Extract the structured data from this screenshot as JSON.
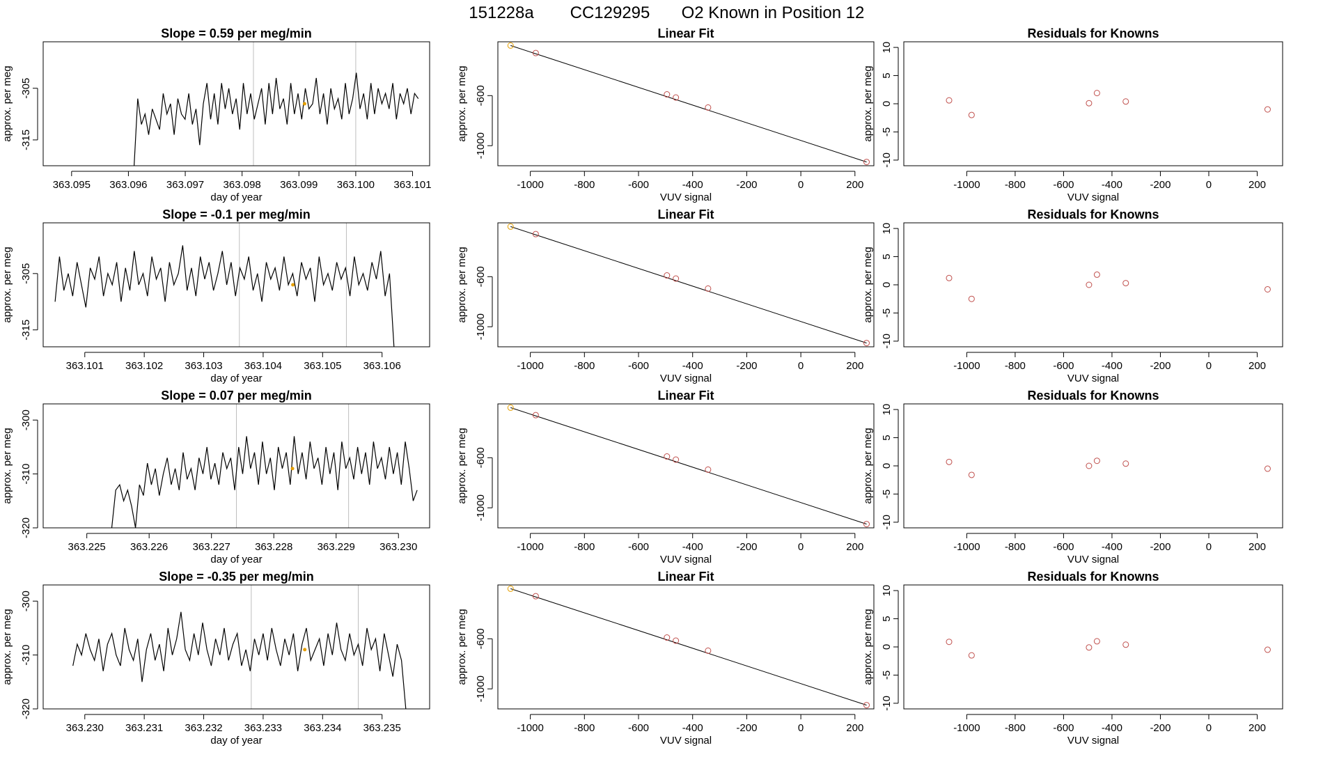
{
  "figure": {
    "title_parts": [
      "151228a",
      "CC129295",
      "O2 Known in Position  12"
    ]
  },
  "chart_data": [
    {
      "type": "line",
      "title": "Slope =  0.59  per meg/min",
      "xlabel": "day of year",
      "ylabel": "approx. per meg",
      "xlim": [
        363.0945,
        363.1013
      ],
      "ylim": [
        -320,
        -296
      ],
      "x_ticks": [
        "363.095",
        "363.096",
        "363.097",
        "363.098",
        "363.099",
        "363.100",
        "363.101"
      ],
      "y_ticks": [
        "-315",
        "-305"
      ],
      "vlines": [
        363.0982,
        363.1
      ],
      "highlight": {
        "x": 363.0991,
        "y": -308
      },
      "series": [
        {
          "start": 363.0961,
          "end": 363.1011,
          "values": [
            -320,
            -307,
            -312,
            -310,
            -314,
            -309,
            -311,
            -313,
            -306,
            -310,
            -308,
            -314,
            -307,
            -310,
            -311,
            -306,
            -312,
            -309,
            -316,
            -308,
            -304,
            -311,
            -306,
            -312,
            -304,
            -309,
            -305,
            -310,
            -307,
            -313,
            -304,
            -310,
            -306,
            -311,
            -308,
            -305,
            -312,
            -304,
            -310,
            -303,
            -309,
            -307,
            -312,
            -304,
            -310,
            -306,
            -311,
            -305,
            -309,
            -308,
            -303,
            -310,
            -306,
            -312,
            -305,
            -309,
            -307,
            -311,
            -304,
            -310,
            -307,
            -302,
            -309,
            -306,
            -311,
            -304,
            -310,
            -305,
            -308,
            -306,
            -309,
            -304,
            -311,
            -306,
            -308,
            -305,
            -310,
            -306,
            -307
          ]
        }
      ]
    },
    {
      "type": "scatter",
      "title": "Linear Fit",
      "xlabel": "VUV signal",
      "ylabel": "approx. per meg",
      "xlim": [
        -1120,
        270
      ],
      "ylim": [
        -1160,
        -170
      ],
      "x_ticks": [
        "-1000",
        "-800",
        "-600",
        "-400",
        "-200",
        "0",
        "200"
      ],
      "x_tick_values": [
        -1000,
        -800,
        -600,
        -400,
        -200,
        0,
        200
      ],
      "y_ticks": [
        "-600",
        "-1000"
      ],
      "y_tick_values": [
        -600,
        -1000
      ],
      "fit": {
        "slope": -0.768,
        "intercept": -1065
      },
      "points": [
        {
          "x": -1073,
          "y": -200,
          "highlight": true
        },
        {
          "x": -980,
          "y": -260
        },
        {
          "x": -495,
          "y": -590
        },
        {
          "x": -462,
          "y": -615
        },
        {
          "x": -343,
          "y": -695
        },
        {
          "x": 243,
          "y": -1130
        }
      ]
    },
    {
      "type": "scatter",
      "title": "Residuals for Knowns",
      "xlabel": "VUV signal",
      "ylabel": "approx. per meg",
      "xlim": [
        -1260,
        305
      ],
      "ylim": [
        -11,
        11
      ],
      "x_ticks": [
        "-1000",
        "-800",
        "-600",
        "-400",
        "-200",
        "0",
        "200"
      ],
      "x_tick_values": [
        -1000,
        -800,
        -600,
        -400,
        -200,
        0,
        200
      ],
      "y_ticks": [
        "-10",
        "-5",
        "0",
        "5",
        "10"
      ],
      "y_tick_values": [
        -10,
        -5,
        0,
        5,
        10
      ],
      "points": [
        {
          "x": -1073,
          "y": 0.6
        },
        {
          "x": -980,
          "y": -2
        },
        {
          "x": -495,
          "y": 0.1
        },
        {
          "x": -462,
          "y": 1.9
        },
        {
          "x": -343,
          "y": 0.4
        },
        {
          "x": 243,
          "y": -1
        }
      ]
    },
    {
      "type": "line",
      "title": "Slope =  -0.1  per meg/min",
      "xlabel": "day of year",
      "ylabel": "approx. per meg",
      "xlim": [
        363.1003,
        363.1068
      ],
      "ylim": [
        -318,
        -296
      ],
      "x_ticks": [
        "363.101",
        "363.102",
        "363.103",
        "363.104",
        "363.105",
        "363.106"
      ],
      "y_ticks": [
        "-315",
        "-305"
      ],
      "vlines": [
        363.1036,
        363.1054
      ],
      "highlight": {
        "x": 363.1045,
        "y": -307
      },
      "series": [
        {
          "start": 363.1005,
          "end": 363.1062,
          "values": [
            -310,
            -302,
            -308,
            -305,
            -309,
            -303,
            -307,
            -311,
            -304,
            -306,
            -302,
            -309,
            -305,
            -307,
            -303,
            -310,
            -304,
            -308,
            -301,
            -307,
            -305,
            -309,
            -302,
            -306,
            -304,
            -310,
            -303,
            -307,
            -305,
            -300,
            -308,
            -304,
            -309,
            -302,
            -306,
            -303,
            -308,
            -305,
            -301,
            -307,
            -303,
            -309,
            -304,
            -306,
            -302,
            -308,
            -305,
            -310,
            -303,
            -306,
            -304,
            -308,
            -302,
            -307,
            -305,
            -309,
            -303,
            -306,
            -304,
            -310,
            -302,
            -307,
            -305,
            -308,
            -303,
            -306,
            -304,
            -309,
            -302,
            -307,
            -305,
            -308,
            -303,
            -306,
            -301,
            -309,
            -305,
            -318
          ]
        }
      ]
    },
    {
      "type": "scatter",
      "title": "Linear Fit",
      "xlabel": "VUV signal",
      "ylabel": "approx. per meg",
      "xlim": [
        -1120,
        270
      ],
      "ylim": [
        -1160,
        -170
      ],
      "x_ticks": [
        "-1000",
        "-800",
        "-600",
        "-400",
        "-200",
        "0",
        "200"
      ],
      "x_tick_values": [
        -1000,
        -800,
        -600,
        -400,
        -200,
        0,
        200
      ],
      "y_ticks": [
        "-600",
        "-1000"
      ],
      "y_tick_values": [
        -600,
        -1000
      ],
      "fit": {
        "slope": -0.768,
        "intercept": -1065
      },
      "points": [
        {
          "x": -1073,
          "y": -200,
          "highlight": true
        },
        {
          "x": -980,
          "y": -260
        },
        {
          "x": -495,
          "y": -590
        },
        {
          "x": -462,
          "y": -615
        },
        {
          "x": -343,
          "y": -695
        },
        {
          "x": 243,
          "y": -1130
        }
      ]
    },
    {
      "type": "scatter",
      "title": "Residuals for Knowns",
      "xlabel": "VUV signal",
      "ylabel": "approx. per meg",
      "xlim": [
        -1260,
        305
      ],
      "ylim": [
        -11,
        11
      ],
      "x_ticks": [
        "-1000",
        "-800",
        "-600",
        "-400",
        "-200",
        "0",
        "200"
      ],
      "x_tick_values": [
        -1000,
        -800,
        -600,
        -400,
        -200,
        0,
        200
      ],
      "y_ticks": [
        "-10",
        "-5",
        "0",
        "5",
        "10"
      ],
      "y_tick_values": [
        -10,
        -5,
        0,
        5,
        10
      ],
      "points": [
        {
          "x": -1073,
          "y": 1.2
        },
        {
          "x": -980,
          "y": -2.5
        },
        {
          "x": -495,
          "y": 0
        },
        {
          "x": -462,
          "y": 1.8
        },
        {
          "x": -343,
          "y": 0.3
        },
        {
          "x": 243,
          "y": -0.8
        }
      ]
    },
    {
      "type": "line",
      "title": "Slope =  0.07  per meg/min",
      "xlabel": "day of year",
      "ylabel": "approx. per meg",
      "xlim": [
        363.2243,
        363.2305
      ],
      "ylim": [
        -320,
        -297
      ],
      "x_ticks": [
        "363.225",
        "363.226",
        "363.227",
        "363.228",
        "363.229",
        "363.230"
      ],
      "y_ticks": [
        "-320",
        "-310",
        "-300"
      ],
      "vlines": [
        363.2274,
        363.2292
      ],
      "highlight": {
        "x": 363.2283,
        "y": -309
      },
      "series": [
        {
          "start": 363.2254,
          "end": 363.2303,
          "values": [
            -320,
            -313,
            -312,
            -315,
            -313,
            -316,
            -320,
            -312,
            -314,
            -308,
            -312,
            -309,
            -314,
            -310,
            -307,
            -312,
            -309,
            -313,
            -306,
            -311,
            -309,
            -313,
            -307,
            -310,
            -305,
            -311,
            -308,
            -312,
            -306,
            -309,
            -307,
            -313,
            -305,
            -310,
            -303,
            -309,
            -306,
            -312,
            -304,
            -310,
            -307,
            -313,
            -305,
            -309,
            -306,
            -312,
            -303,
            -310,
            -306,
            -311,
            -304,
            -309,
            -307,
            -312,
            -305,
            -310,
            -306,
            -313,
            -304,
            -309,
            -307,
            -311,
            -305,
            -310,
            -306,
            -312,
            -304,
            -309,
            -307,
            -311,
            -305,
            -310,
            -306,
            -312,
            -304,
            -309,
            -315,
            -313
          ]
        }
      ]
    },
    {
      "type": "scatter",
      "title": "Linear Fit",
      "xlabel": "VUV signal",
      "ylabel": "approx. per meg",
      "xlim": [
        -1120,
        270
      ],
      "ylim": [
        -1160,
        -170
      ],
      "x_ticks": [
        "-1000",
        "-800",
        "-600",
        "-400",
        "-200",
        "0",
        "200"
      ],
      "x_tick_values": [
        -1000,
        -800,
        -600,
        -400,
        -200,
        0,
        200
      ],
      "y_ticks": [
        "-600",
        "-1000"
      ],
      "y_tick_values": [
        -600,
        -1000
      ],
      "fit": {
        "slope": -0.768,
        "intercept": -1065
      },
      "points": [
        {
          "x": -1073,
          "y": -200,
          "highlight": true
        },
        {
          "x": -980,
          "y": -260
        },
        {
          "x": -495,
          "y": -590
        },
        {
          "x": -462,
          "y": -615
        },
        {
          "x": -343,
          "y": -695
        },
        {
          "x": 243,
          "y": -1130
        }
      ]
    },
    {
      "type": "scatter",
      "title": "Residuals for Knowns",
      "xlabel": "VUV signal",
      "ylabel": "approx. per meg",
      "xlim": [
        -1260,
        305
      ],
      "ylim": [
        -11,
        11
      ],
      "x_ticks": [
        "-1000",
        "-800",
        "-600",
        "-400",
        "-200",
        "0",
        "200"
      ],
      "x_tick_values": [
        -1000,
        -800,
        -600,
        -400,
        -200,
        0,
        200
      ],
      "y_ticks": [
        "-10",
        "-5",
        "0",
        "5",
        "10"
      ],
      "y_tick_values": [
        -10,
        -5,
        0,
        5,
        10
      ],
      "points": [
        {
          "x": -1073,
          "y": 0.7
        },
        {
          "x": -980,
          "y": -1.6
        },
        {
          "x": -495,
          "y": 0
        },
        {
          "x": -462,
          "y": 0.9
        },
        {
          "x": -343,
          "y": 0.4
        },
        {
          "x": 243,
          "y": -0.5
        }
      ]
    },
    {
      "type": "line",
      "title": "Slope =  -0.35  per meg/min",
      "xlabel": "day of year",
      "ylabel": "approx. per meg",
      "xlim": [
        363.2293,
        363.2358
      ],
      "ylim": [
        -320,
        -297
      ],
      "x_ticks": [
        "363.230",
        "363.231",
        "363.232",
        "363.233",
        "363.234",
        "363.235"
      ],
      "y_ticks": [
        "-320",
        "-310",
        "-300"
      ],
      "vlines": [
        363.2328,
        363.2346
      ],
      "highlight": {
        "x": 363.2337,
        "y": -309
      },
      "series": [
        {
          "start": 363.2298,
          "end": 363.2354,
          "values": [
            -312,
            -308,
            -310,
            -306,
            -309,
            -311,
            -307,
            -313,
            -308,
            -306,
            -310,
            -312,
            -305,
            -309,
            -311,
            -307,
            -315,
            -309,
            -306,
            -311,
            -308,
            -313,
            -305,
            -310,
            -307,
            -302,
            -309,
            -311,
            -306,
            -310,
            -304,
            -309,
            -312,
            -307,
            -310,
            -305,
            -311,
            -308,
            -306,
            -312,
            -309,
            -313,
            -307,
            -310,
            -306,
            -311,
            -305,
            -309,
            -312,
            -307,
            -310,
            -306,
            -313,
            -308,
            -305,
            -311,
            -309,
            -307,
            -312,
            -306,
            -310,
            -304,
            -309,
            -311,
            -306,
            -310,
            -308,
            -312,
            -305,
            -309,
            -307,
            -313,
            -306,
            -310,
            -314,
            -308,
            -311,
            -320
          ]
        }
      ]
    },
    {
      "type": "scatter",
      "title": "Linear Fit",
      "xlabel": "VUV signal",
      "ylabel": "approx. per meg",
      "xlim": [
        -1120,
        270
      ],
      "ylim": [
        -1160,
        -170
      ],
      "x_ticks": [
        "-1000",
        "-800",
        "-600",
        "-400",
        "-200",
        "0",
        "200"
      ],
      "x_tick_values": [
        -1000,
        -800,
        -600,
        -400,
        -200,
        0,
        200
      ],
      "y_ticks": [
        "-600",
        "-1000"
      ],
      "y_tick_values": [
        -600,
        -1000
      ],
      "fit": {
        "slope": -0.768,
        "intercept": -1065
      },
      "points": [
        {
          "x": -1073,
          "y": -200,
          "highlight": true
        },
        {
          "x": -980,
          "y": -260
        },
        {
          "x": -495,
          "y": -590
        },
        {
          "x": -462,
          "y": -615
        },
        {
          "x": -343,
          "y": -695
        },
        {
          "x": 243,
          "y": -1130
        }
      ]
    },
    {
      "type": "scatter",
      "title": "Residuals for Knowns",
      "xlabel": "VUV signal",
      "ylabel": "approx. per meg",
      "xlim": [
        -1260,
        305
      ],
      "ylim": [
        -11,
        11
      ],
      "x_ticks": [
        "-1000",
        "-800",
        "-600",
        "-400",
        "-200",
        "0",
        "200"
      ],
      "x_tick_values": [
        -1000,
        -800,
        -600,
        -400,
        -200,
        0,
        200
      ],
      "y_ticks": [
        "-10",
        "-5",
        "0",
        "5",
        "10"
      ],
      "y_tick_values": [
        -10,
        -5,
        0,
        5,
        10
      ],
      "points": [
        {
          "x": -1073,
          "y": 0.9
        },
        {
          "x": -980,
          "y": -1.5
        },
        {
          "x": -495,
          "y": -0.1
        },
        {
          "x": -462,
          "y": 1
        },
        {
          "x": -343,
          "y": 0.4
        },
        {
          "x": 243,
          "y": -0.5
        }
      ]
    }
  ],
  "colors": {
    "line": "#000000",
    "point": "#c0504d",
    "highlight": "#e69f00",
    "vline": "#bebebe",
    "axis": "#000000"
  }
}
